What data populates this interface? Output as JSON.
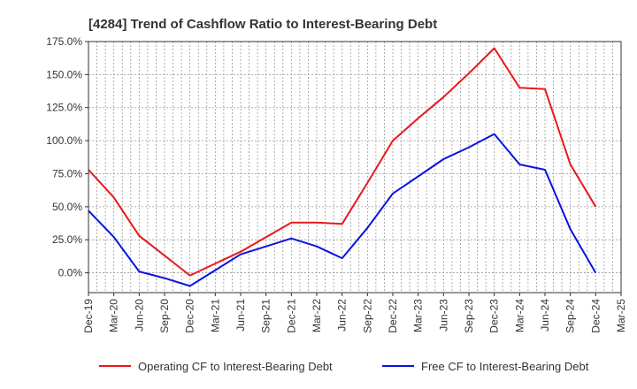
{
  "chart_data": {
    "type": "line",
    "title": "[4284]  Trend of Cashflow Ratio to Interest-Bearing Debt",
    "xlabel": "",
    "ylabel": "",
    "x": [
      "Dec-19",
      "Mar-20",
      "Jun-20",
      "Sep-20",
      "Dec-20",
      "Mar-21",
      "Jun-21",
      "Sep-21",
      "Dec-21",
      "Mar-22",
      "Jun-22",
      "Sep-22",
      "Dec-22",
      "Mar-23",
      "Jun-23",
      "Sep-23",
      "Dec-23",
      "Mar-24",
      "Jun-24",
      "Sep-24",
      "Dec-24",
      "Mar-25"
    ],
    "ylim": [
      -15,
      175
    ],
    "yticks": [
      0,
      25,
      50,
      75,
      100,
      125,
      150,
      175
    ],
    "ytick_labels": [
      "0.0%",
      "25.0%",
      "50.0%",
      "75.0%",
      "100.0%",
      "125.0%",
      "150.0%",
      "175.0%"
    ],
    "grid": true,
    "legend_position": "bottom",
    "series": [
      {
        "name": "Operating CF to Interest-Bearing Debt",
        "color": "#e8191b",
        "values": [
          78,
          57,
          28,
          13,
          -2,
          7,
          16,
          27,
          38,
          38,
          37,
          68,
          100,
          117,
          133,
          151,
          170,
          140,
          139,
          82,
          50,
          null
        ]
      },
      {
        "name": "Free CF to Interest-Bearing Debt",
        "color": "#0a14e0",
        "values": [
          47,
          27,
          1,
          -4,
          -10,
          2,
          14,
          20,
          26,
          20,
          11,
          34,
          60,
          73,
          86,
          95,
          105,
          82,
          78,
          33,
          0,
          null
        ]
      }
    ]
  }
}
